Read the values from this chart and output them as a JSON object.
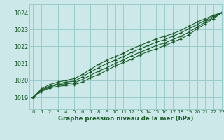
{
  "title": "Graphe pression niveau de la mer (hPa)",
  "bg_color": "#cce8e8",
  "grid_color": "#99cccc",
  "line_color": "#1a5c2a",
  "xlim": [
    -0.5,
    23
  ],
  "ylim": [
    1018.3,
    1024.5
  ],
  "yticks": [
    1019,
    1020,
    1021,
    1022,
    1023,
    1024
  ],
  "xticks": [
    0,
    1,
    2,
    3,
    4,
    5,
    6,
    7,
    8,
    9,
    10,
    11,
    12,
    13,
    14,
    15,
    16,
    17,
    18,
    19,
    20,
    21,
    22,
    23
  ],
  "lines": [
    [
      1019.0,
      1019.35,
      1019.55,
      1019.65,
      1019.7,
      1019.75,
      1019.9,
      1020.15,
      1020.35,
      1020.6,
      1020.85,
      1021.05,
      1021.25,
      1021.5,
      1021.7,
      1021.85,
      1022.05,
      1022.25,
      1022.45,
      1022.7,
      1023.05,
      1023.35,
      1023.65,
      1024.0
    ],
    [
      1019.0,
      1019.4,
      1019.6,
      1019.75,
      1019.8,
      1019.85,
      1020.05,
      1020.3,
      1020.55,
      1020.75,
      1021.0,
      1021.2,
      1021.45,
      1021.65,
      1021.85,
      1022.05,
      1022.2,
      1022.4,
      1022.6,
      1022.85,
      1023.15,
      1023.45,
      1023.72,
      1024.0
    ],
    [
      1019.0,
      1019.45,
      1019.65,
      1019.8,
      1019.9,
      1019.95,
      1020.2,
      1020.5,
      1020.75,
      1021.0,
      1021.2,
      1021.4,
      1021.65,
      1021.85,
      1022.05,
      1022.25,
      1022.4,
      1022.6,
      1022.8,
      1023.05,
      1023.3,
      1023.55,
      1023.8,
      1024.0
    ],
    [
      1019.0,
      1019.5,
      1019.75,
      1019.9,
      1020.0,
      1020.1,
      1020.35,
      1020.65,
      1020.95,
      1021.2,
      1021.4,
      1021.6,
      1021.85,
      1022.05,
      1022.25,
      1022.45,
      1022.6,
      1022.75,
      1022.95,
      1023.2,
      1023.45,
      1023.65,
      1023.85,
      1024.0
    ]
  ]
}
